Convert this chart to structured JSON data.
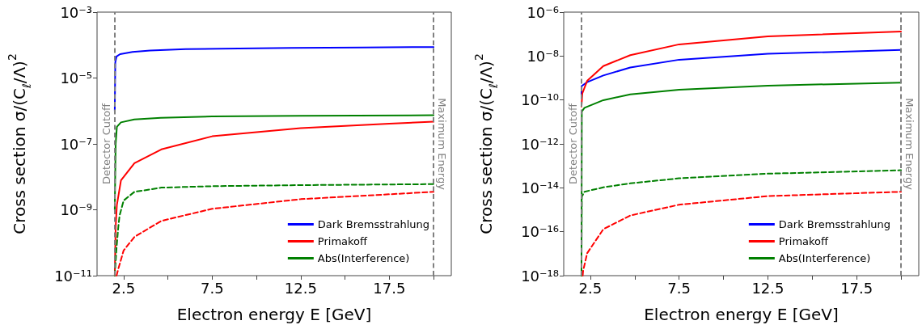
{
  "chart_data": [
    {
      "type": "line",
      "xlabel": "Electron energy E [GeV]",
      "ylabel": "Cross section σ/(C$_{ℓ}$/Λ)$^{2}$",
      "log": "y",
      "xlim": [
        1,
        21
      ],
      "ylim": [
        1e-11,
        0.001
      ],
      "xticks": [
        2.5,
        {
          "value": 5,
          "label": null
        },
        7.5,
        {
          "value": 10,
          "label": null
        },
        12.5,
        {
          "value": 15,
          "label": null
        },
        17.5,
        {
          "value": 20,
          "label": null
        }
      ],
      "yticks": [
        {
          "value": 1e-11,
          "label": "10⁻¹¹"
        },
        {
          "value": 1e-09,
          "label": "10⁻⁹"
        },
        {
          "value": 1e-07,
          "label": "10⁻⁷"
        },
        {
          "value": 1e-05,
          "label": "10⁻⁵"
        },
        {
          "value": 0.001,
          "label": "10⁻³"
        }
      ],
      "grid": false,
      "legend": "bottom right",
      "marker": "none",
      "line_style": "solid",
      "ref_lines": [
        {
          "axis": "x",
          "value": 2,
          "label": "Detector Cutoff",
          "color": "#808080",
          "line_style": "dashed"
        },
        {
          "axis": "x",
          "value": 20,
          "label": "Maximum Energy",
          "color": "#808080",
          "line_style": "dashed"
        }
      ],
      "series": [
        {
          "name": "Dark Bremsstrahlung",
          "color": "#0000ff",
          "x": [
            2.0,
            2.03,
            2.1,
            2.3,
            3,
            4,
            6,
            8,
            12,
            16,
            20
          ],
          "values": [
            1e-06,
            3e-05,
            4.5e-05,
            5.3e-05,
            6.2e-05,
            6.8e-05,
            7.5e-05,
            7.8e-05,
            8.2e-05,
            8.5e-05,
            8.7e-05
          ]
        },
        {
          "name": "Primakoff",
          "color": "#ff0000",
          "x": [
            2.0,
            2.05,
            2.12,
            2.35,
            3.11,
            4.63,
            7.5,
            12.5,
            17.5,
            20
          ],
          "values": [
            1e-11,
            3e-10,
            1.4e-09,
            7.8e-09,
            2.6e-08,
            6.8e-08,
            1.7e-07,
            3e-07,
            4.1e-07,
            4.7e-07
          ]
        },
        {
          "name": "Abs(Interference)",
          "color": "#008000",
          "x": [
            2.0,
            2.05,
            2.12,
            2.35,
            3.1,
            4.6,
            7.5,
            12.5,
            20
          ],
          "values": [
            1e-09,
            1e-07,
            3.3e-07,
            4.5e-07,
            5.5e-07,
            6.2e-07,
            6.8e-07,
            7.1e-07,
            7.4e-07
          ]
        },
        {
          "color": "#008000",
          "line_style": "dashed",
          "x": [
            2.0,
            2.1,
            2.2,
            2.27,
            2.5,
            3.11,
            4.63,
            7.5,
            12.5,
            20
          ],
          "values": [
            1e-11,
            7e-11,
            3e-10,
            6.6e-10,
            1.9e-09,
            3.5e-09,
            4.7e-09,
            5.2e-09,
            5.6e-09,
            6e-09
          ]
        },
        {
          "color": "#ff0000",
          "line_style": "dashed",
          "x": [
            2.1,
            2.2,
            2.5,
            3.11,
            4.63,
            7.5,
            12.5,
            20
          ],
          "values": [
            1e-11,
            1.6e-11,
            5.8e-11,
            1.5e-10,
            4.6e-10,
            1.07e-09,
            2.1e-09,
            3.5e-09
          ]
        }
      ]
    },
    {
      "type": "line",
      "xlabel": "Electron energy E [GeV]",
      "ylabel": "Cross section σ/(C$_{ℓ}$/Λ)$^{2}$",
      "log": "y",
      "xlim": [
        1,
        21
      ],
      "ylim": [
        1e-18,
        1e-06
      ],
      "xticks": [
        2.5,
        {
          "value": 5,
          "label": null
        },
        7.5,
        {
          "value": 10,
          "label": null
        },
        12.5,
        {
          "value": 15,
          "label": null
        },
        17.5,
        {
          "value": 20,
          "label": null
        }
      ],
      "yticks": [
        {
          "value": 1e-18,
          "label": "10⁻¹⁸"
        },
        {
          "value": 1e-16,
          "label": "10⁻¹⁶"
        },
        {
          "value": 1e-14,
          "label": "10⁻¹⁴"
        },
        {
          "value": 1e-12,
          "label": "10⁻¹²"
        },
        {
          "value": 1e-10,
          "label": "10⁻¹⁰"
        },
        {
          "value": 1e-08,
          "label": "10⁻⁸"
        },
        {
          "value": 1e-06,
          "label": "10⁻⁶"
        }
      ],
      "grid": false,
      "legend": "bottom right",
      "marker": "none",
      "line_style": "solid",
      "ref_lines": [
        {
          "axis": "x",
          "value": 2,
          "label": "Detector Cutoff",
          "color": "#808080",
          "line_style": "dashed"
        },
        {
          "axis": "x",
          "value": 20,
          "label": "Maximum Energy",
          "color": "#808080",
          "line_style": "dashed"
        }
      ],
      "series": [
        {
          "name": "Dark Bremsstrahlung",
          "color": "#0000ff",
          "x": [
            2.0,
            2.01,
            2.32,
            3.23,
            4.75,
            7.5,
            12.5,
            20
          ],
          "values": [
            1.6e-10,
            4.3e-10,
            6.5e-10,
            1.3e-09,
            3e-09,
            6.8e-09,
            1.26e-08,
            1.9e-08
          ]
        },
        {
          "name": "Primakoff",
          "color": "#ff0000",
          "x": [
            2.0,
            2.05,
            2.32,
            3.23,
            4.75,
            7.5,
            12.5,
            20
          ],
          "values": [
            5e-11,
            2e-10,
            7.4e-10,
            3.5e-09,
            1.1e-08,
            3.4e-08,
            7.9e-08,
            1.3e-07
          ]
        },
        {
          "name": "Abs(Interference)",
          "color": "#008000",
          "x": [
            2.0,
            2.02,
            2.17,
            3.23,
            4.75,
            7.5,
            12.5,
            20
          ],
          "values": [
            1e-18,
            3e-11,
            4.4e-11,
            9.8e-11,
            1.8e-10,
            2.9e-10,
            4.5e-10,
            6.2e-10
          ]
        },
        {
          "color": "#008000",
          "line_style": "dashed",
          "x": [
            2.0,
            2.02,
            2.17,
            3.23,
            4.75,
            7.5,
            12.5,
            20
          ],
          "values": [
            1e-18,
            4e-15,
            6.6e-15,
            1.05e-14,
            1.6e-14,
            2.7e-14,
            4.4e-14,
            6.3e-14
          ]
        },
        {
          "color": "#ff0000",
          "line_style": "dashed",
          "x": [
            2.07,
            2.09,
            2.32,
            3.23,
            4.75,
            7.5,
            12.5,
            20
          ],
          "values": [
            1e-18,
            1.6e-18,
            1.05e-17,
            1.3e-16,
            5.5e-16,
            1.7e-15,
            4.2e-15,
            6.6e-15
          ]
        }
      ]
    }
  ]
}
